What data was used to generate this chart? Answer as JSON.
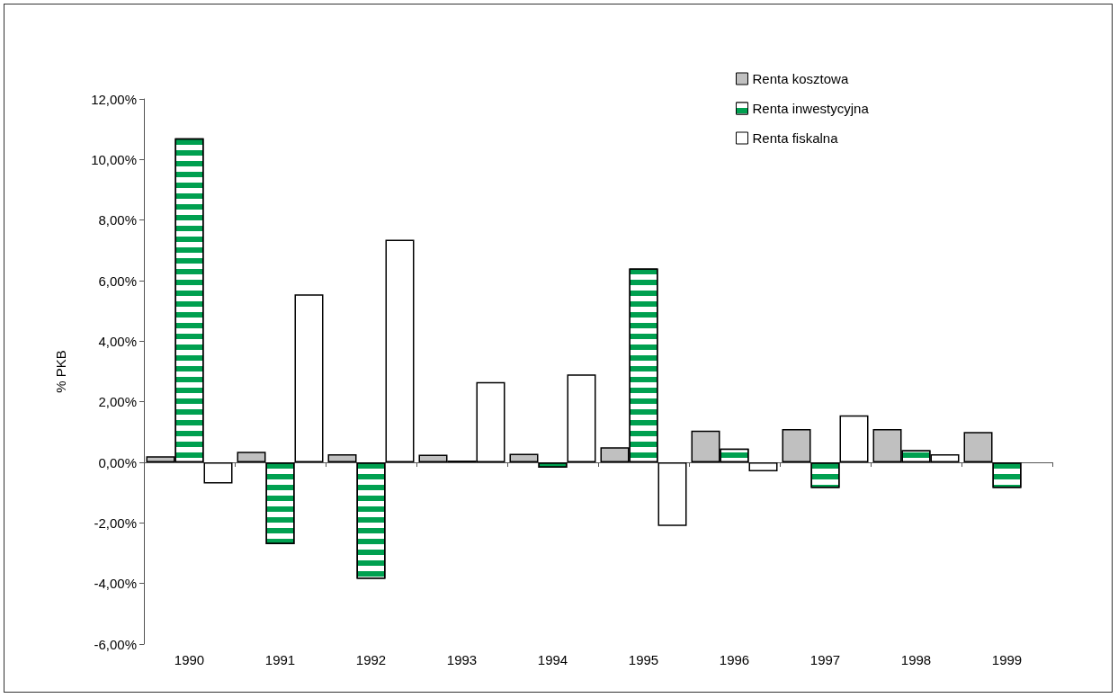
{
  "chart_data": {
    "type": "bar",
    "ylabel": "% PKB",
    "categories": [
      "1990",
      "1991",
      "1992",
      "1993",
      "1994",
      "1995",
      "1996",
      "1997",
      "1998",
      "1999"
    ],
    "series": [
      {
        "name": "Renta kosztowa",
        "color": "#c0c0c0",
        "values": [
          0.2,
          0.35,
          0.27,
          0.25,
          0.28,
          0.5,
          1.05,
          1.1,
          1.1,
          1.0
        ]
      },
      {
        "name": "Renta inwestycyjna",
        "color": "#00a050",
        "values": [
          10.7,
          -2.7,
          -3.85,
          0.05,
          -0.18,
          6.4,
          0.45,
          -0.85,
          0.4,
          -0.85
        ]
      },
      {
        "name": "Renta fiskalna",
        "color": "#ffffff",
        "values": [
          -0.7,
          5.55,
          7.35,
          2.65,
          2.9,
          -2.1,
          -0.3,
          1.55,
          0.27,
          null
        ]
      }
    ],
    "ylim": [
      -6,
      12
    ],
    "yticks": [
      {
        "value": -6,
        "label": "-6,00%"
      },
      {
        "value": -4,
        "label": "-4,00%"
      },
      {
        "value": -2,
        "label": "-2,00%"
      },
      {
        "value": 0,
        "label": "0,00%"
      },
      {
        "value": 2,
        "label": "2,00%"
      },
      {
        "value": 4,
        "label": "4,00%"
      },
      {
        "value": 6,
        "label": "6,00%"
      },
      {
        "value": 8,
        "label": "8,00%"
      },
      {
        "value": 10,
        "label": "10,00%"
      },
      {
        "value": 12,
        "label": "12,00%"
      }
    ],
    "legend": "top right"
  }
}
